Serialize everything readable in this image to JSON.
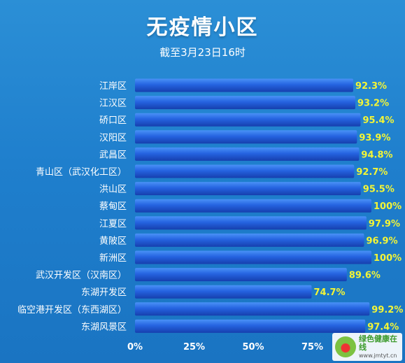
{
  "title": "无疫情小区",
  "subtitle": "截至3月23日16时",
  "chart_data": {
    "type": "bar",
    "orientation": "horizontal",
    "categories": [
      "江岸区",
      "江汉区",
      "硚口区",
      "汉阳区",
      "武昌区",
      "青山区（武汉化工区）",
      "洪山区",
      "蔡甸区",
      "江夏区",
      "黄陂区",
      "新洲区",
      "武汉开发区（汉南区）",
      "东湖开发区",
      "临空港开发区（东西湖区）",
      "东湖风景区"
    ],
    "values": [
      92.3,
      93.2,
      95.4,
      93.9,
      94.8,
      92.7,
      95.5,
      100,
      97.9,
      96.9,
      100,
      89.6,
      74.7,
      99.2,
      97.4
    ],
    "value_labels": [
      "92.3%",
      "93.2%",
      "95.4%",
      "93.9%",
      "94.8%",
      "92.7%",
      "95.5%",
      "100%",
      "97.9%",
      "96.9%",
      "100%",
      "89.6%",
      "74.7%",
      "99.2%",
      "97.4%"
    ],
    "x_ticks": [
      "0%",
      "25%",
      "50%",
      "75%"
    ],
    "xlim": [
      0,
      100
    ],
    "colors": {
      "bar": "#1f5ed9",
      "bar_light": "#3d85f2",
      "value_label": "#f3f536",
      "text": "#ffffff"
    }
  },
  "watermark": {
    "name": "绿色健康在线",
    "url": "www.jmtyt.cn"
  }
}
